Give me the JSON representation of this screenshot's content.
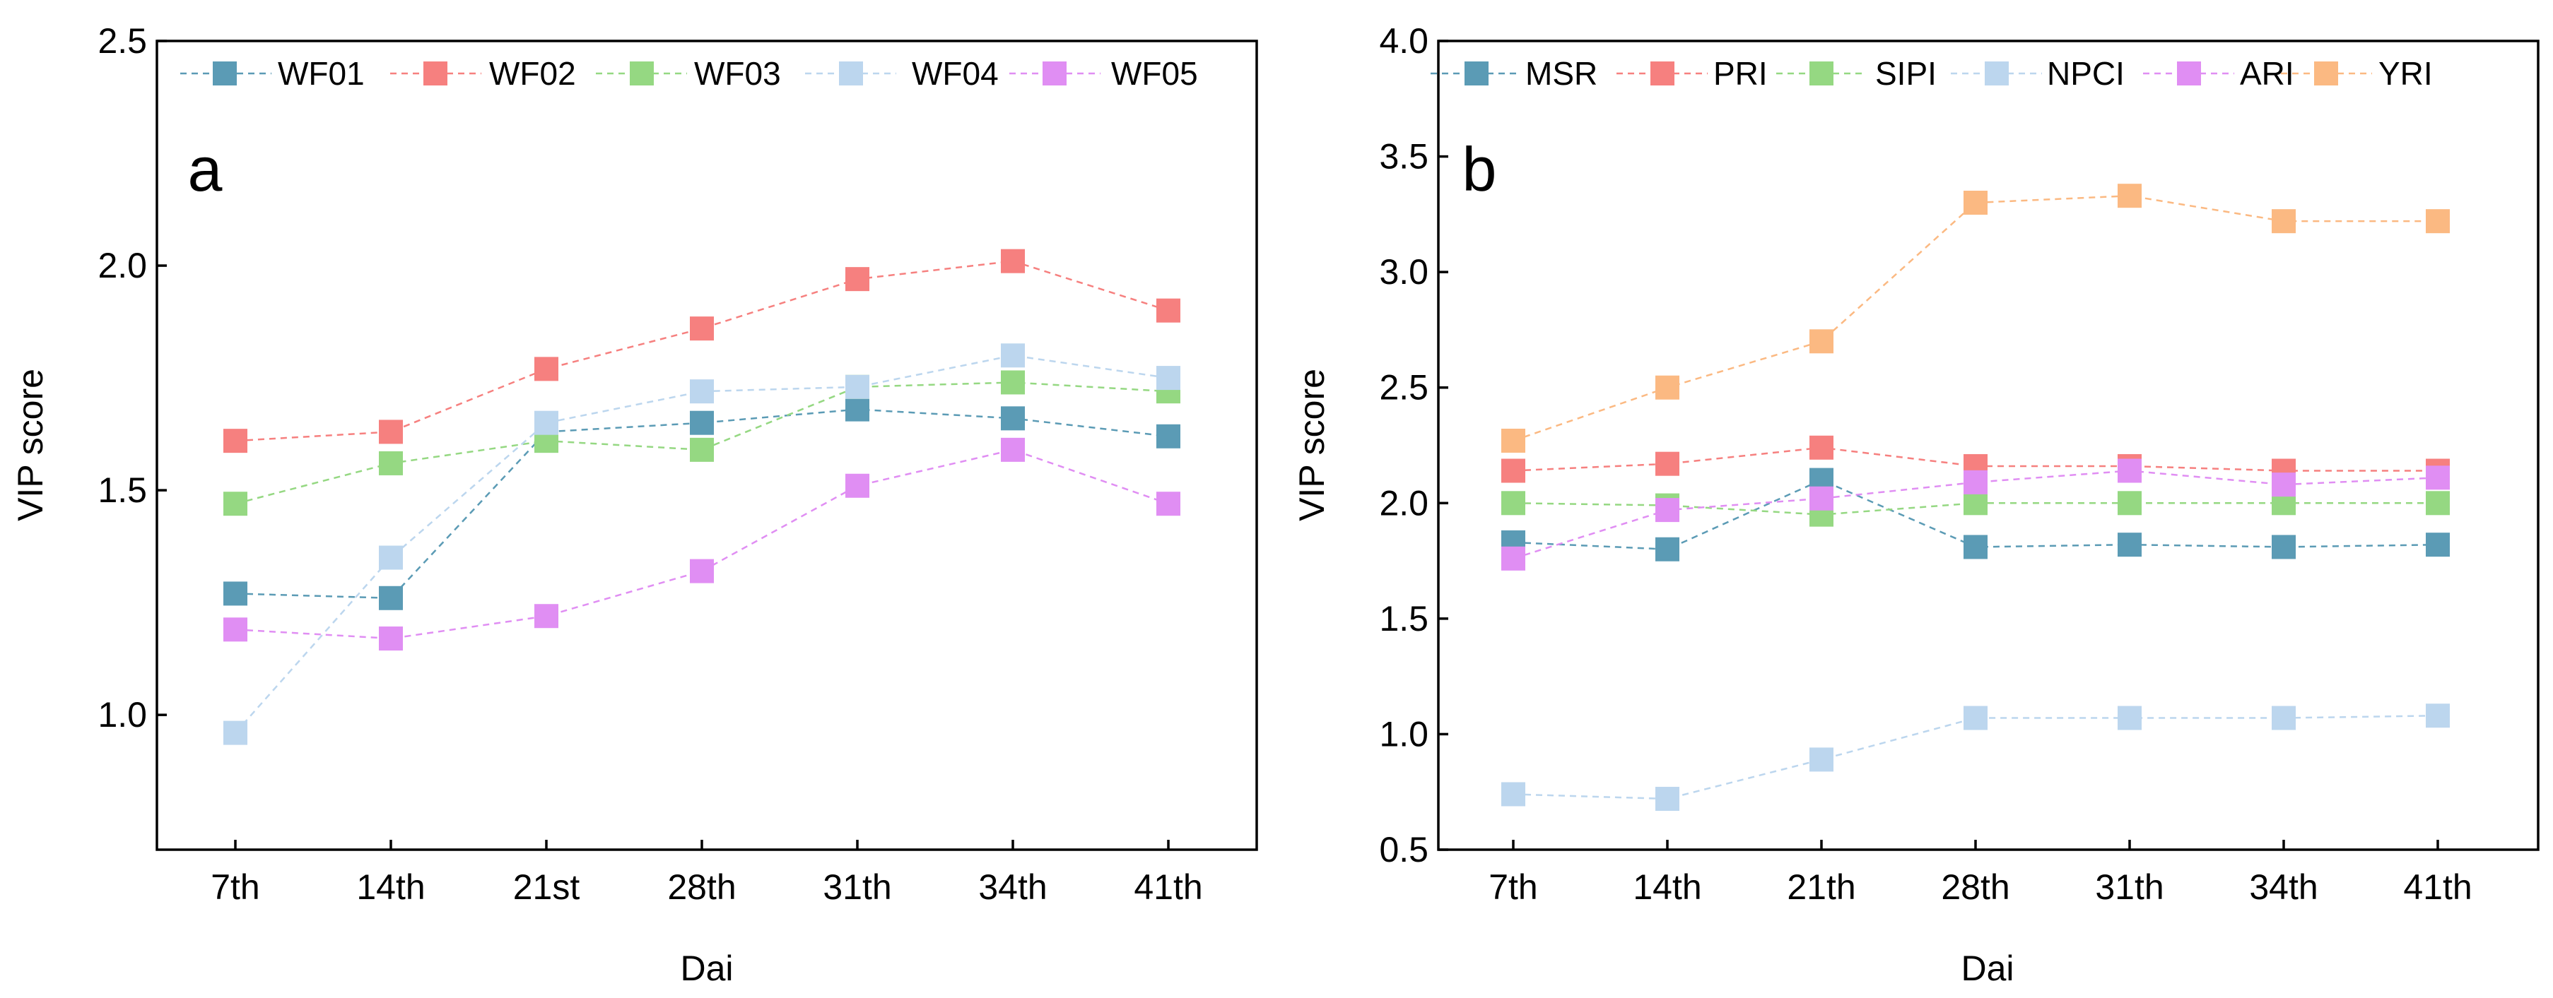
{
  "chart_data": [
    {
      "type": "line",
      "panel_label": "a",
      "categories": [
        "7th",
        "14th",
        "21st",
        "28th",
        "31th",
        "34th",
        "41th"
      ],
      "xlabel": "Dai",
      "ylabel": "VIP score",
      "ylim": [
        0.7,
        2.5
      ],
      "yticks": [
        1.0,
        1.5,
        2.0,
        2.5
      ],
      "ytick_labels": [
        "1.0",
        "1.5",
        "2.0",
        "2.5"
      ],
      "legend_position": "top",
      "series": [
        {
          "name": "WF01",
          "color": "#5b9bb5",
          "values": [
            1.27,
            1.26,
            1.63,
            1.65,
            1.68,
            1.66,
            1.62
          ]
        },
        {
          "name": "WF02",
          "color": "#f6807f",
          "values": [
            1.61,
            1.63,
            1.77,
            1.86,
            1.97,
            2.01,
            1.9
          ]
        },
        {
          "name": "WF03",
          "color": "#95d882",
          "values": [
            1.47,
            1.56,
            1.61,
            1.59,
            1.73,
            1.74,
            1.72
          ]
        },
        {
          "name": "WF04",
          "color": "#bcd6ee",
          "values": [
            0.96,
            1.35,
            1.65,
            1.72,
            1.73,
            1.8,
            1.75
          ]
        },
        {
          "name": "WF05",
          "color": "#e08ef3",
          "values": [
            1.19,
            1.17,
            1.22,
            1.32,
            1.51,
            1.59,
            1.47
          ]
        }
      ]
    },
    {
      "type": "line",
      "panel_label": "b",
      "categories": [
        "7th",
        "14th",
        "21th",
        "28th",
        "31th",
        "34th",
        "41th"
      ],
      "xlabel": "Dai",
      "ylabel": "VIP score",
      "ylim": [
        0.5,
        4.0
      ],
      "yticks": [
        0.5,
        1.0,
        1.5,
        2.0,
        2.5,
        3.0,
        3.5,
        4.0
      ],
      "ytick_labels": [
        "0.5",
        "1.0",
        "1.5",
        "2.0",
        "2.5",
        "3.0",
        "3.5",
        "4.0"
      ],
      "legend_position": "top",
      "series": [
        {
          "name": "MSR",
          "color": "#5b9bb5",
          "values": [
            1.83,
            1.8,
            2.1,
            1.81,
            1.82,
            1.81,
            1.82
          ]
        },
        {
          "name": "PRI",
          "color": "#f6807f",
          "values": [
            2.14,
            2.17,
            2.24,
            2.16,
            2.16,
            2.14,
            2.14
          ]
        },
        {
          "name": "SIPI",
          "color": "#95d882",
          "values": [
            2.0,
            1.99,
            1.95,
            2.0,
            2.0,
            2.0,
            2.0
          ]
        },
        {
          "name": "NPCI",
          "color": "#bcd6ee",
          "values": [
            0.74,
            0.72,
            0.89,
            1.07,
            1.07,
            1.07,
            1.08
          ]
        },
        {
          "name": "ARI",
          "color": "#e08ef3",
          "values": [
            1.76,
            1.97,
            2.02,
            2.09,
            2.14,
            2.08,
            2.11
          ]
        },
        {
          "name": "YRI",
          "color": "#fbb982",
          "values": [
            2.27,
            2.5,
            2.7,
            3.3,
            3.33,
            3.22,
            3.22
          ]
        }
      ]
    }
  ]
}
